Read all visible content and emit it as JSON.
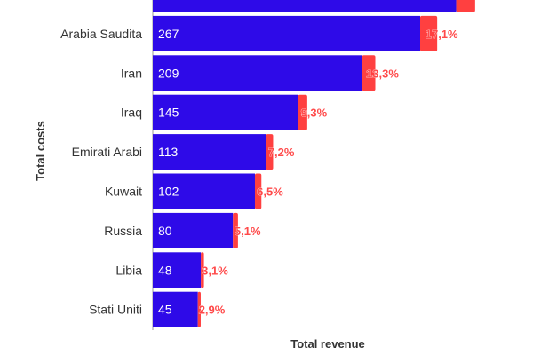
{
  "chart_data": {
    "type": "bar",
    "orientation": "horizontal",
    "stacked": true,
    "xlabel": "Total revenue",
    "ylabel": "Total costs",
    "categories": [
      "",
      "Arabia Saudita",
      "Iran",
      "Iraq",
      "Emirati Arabi",
      "Kuwait",
      "Russia",
      "Libia",
      "Stati Uniti"
    ],
    "values": [
      303,
      267,
      209,
      145,
      113,
      102,
      80,
      48,
      45
    ],
    "value_labels": [
      "",
      "267",
      "209",
      "145",
      "113",
      "102",
      "80",
      "48",
      "45"
    ],
    "percent_values": [
      19.0,
      17.1,
      13.3,
      9.3,
      7.2,
      6.5,
      5.1,
      3.1,
      2.9
    ],
    "percent_labels": [
      "",
      "17,1%",
      "13,3%",
      "9,3%",
      "7,2%",
      "6,5%",
      "5,1%",
      "3,1%",
      "2,9%"
    ],
    "colors": {
      "value": "#2e0ae8",
      "percent": "#ff4040"
    },
    "grid": false
  }
}
